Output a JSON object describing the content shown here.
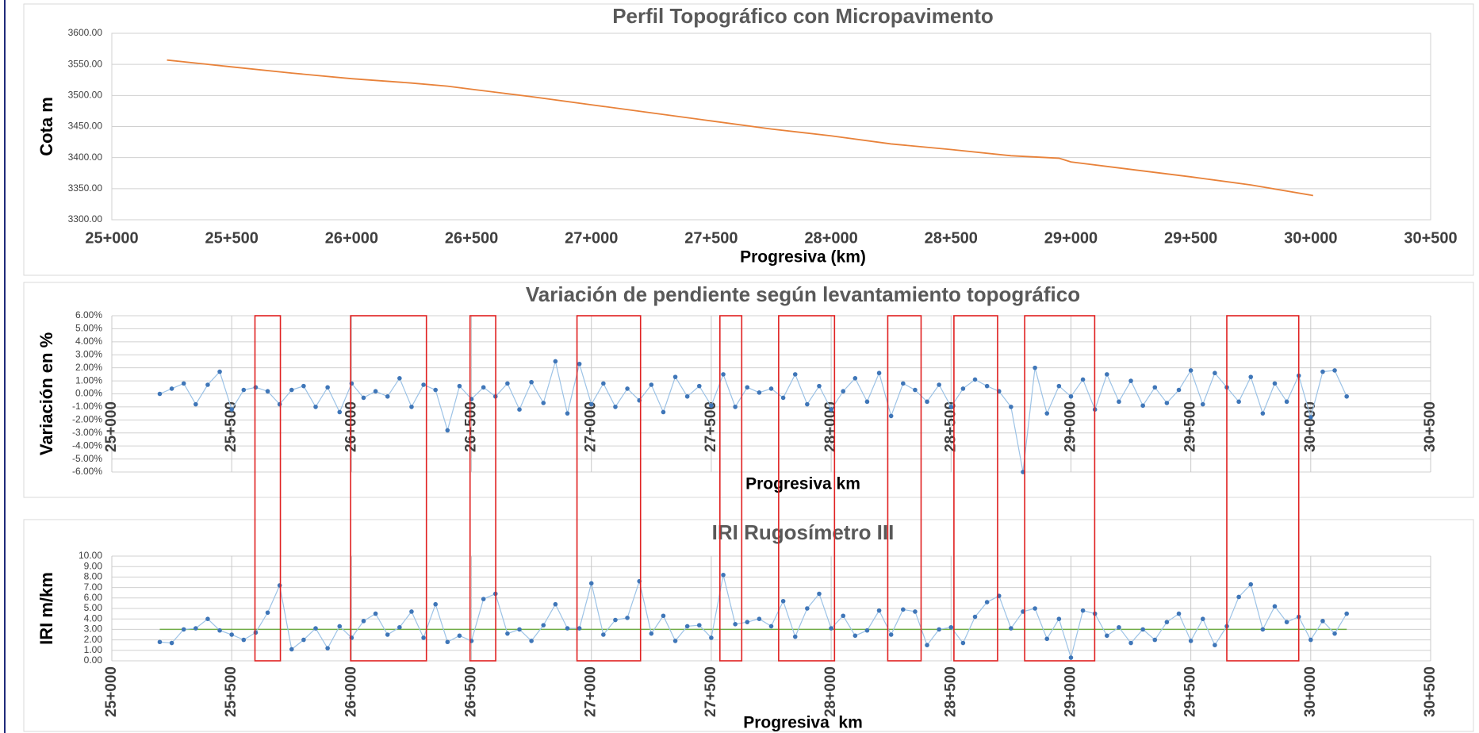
{
  "chart_data": [
    {
      "type": "line",
      "title": "Perfil Topográfico con Micropavimento",
      "xlabel": "Progresiva (km)",
      "ylabel": "Cota m",
      "color": "#e8823a",
      "markers": false,
      "grid": true,
      "xgrid": false,
      "rotate_xticks": false,
      "x": [
        25230,
        25500,
        25750,
        26000,
        26250,
        26400,
        26500,
        26750,
        27000,
        27250,
        27500,
        27750,
        28000,
        28250,
        28500,
        28750,
        28950,
        29000,
        29250,
        29500,
        29750,
        30010
      ],
      "values": [
        3557,
        3546,
        3536,
        3527,
        3520,
        3515,
        3510,
        3498,
        3485,
        3472,
        3459,
        3446,
        3435,
        3422,
        3413,
        3403,
        3399,
        3393,
        3381,
        3369,
        3356,
        3339
      ],
      "xlim": [
        25000,
        30500
      ],
      "xticks": [
        {
          "value": 25000,
          "label": "25+000"
        },
        {
          "value": 25500,
          "label": "25+500"
        },
        {
          "value": 26000,
          "label": "26+000"
        },
        {
          "value": 26500,
          "label": "26+500"
        },
        {
          "value": 27000,
          "label": "27+000"
        },
        {
          "value": 27500,
          "label": "27+500"
        },
        {
          "value": 28000,
          "label": "28+000"
        },
        {
          "value": 28500,
          "label": "28+500"
        },
        {
          "value": 29000,
          "label": "29+000"
        },
        {
          "value": 29500,
          "label": "29+500"
        },
        {
          "value": 30000,
          "label": "30+000"
        },
        {
          "value": 30500,
          "label": "30+500"
        }
      ],
      "ylim": [
        3300,
        3600
      ],
      "yticks": [
        {
          "value": 3300,
          "label": "3300.00"
        },
        {
          "value": 3350,
          "label": "3350.00"
        },
        {
          "value": 3400,
          "label": "3400.00"
        },
        {
          "value": 3450,
          "label": "3450.00"
        },
        {
          "value": 3500,
          "label": "3500.00"
        },
        {
          "value": 3550,
          "label": "3550.00"
        },
        {
          "value": 3600,
          "label": "3600.00"
        }
      ]
    },
    {
      "type": "line",
      "title": "Variación de pendiente según levantamiento topográfico",
      "xlabel": "Progresiva km",
      "ylabel": "Variación en %",
      "color": "#3f76b8",
      "line_color": "#9dc3e6",
      "markers": true,
      "grid": true,
      "xgrid": true,
      "rotate_xticks": true,
      "x": [
        25200,
        25250,
        25300,
        25350,
        25400,
        25450,
        25500,
        25550,
        25600,
        25650,
        25700,
        25750,
        25800,
        25850,
        25900,
        25950,
        26000,
        26050,
        26100,
        26150,
        26200,
        26250,
        26300,
        26350,
        26400,
        26450,
        26500,
        26550,
        26600,
        26650,
        26700,
        26750,
        26800,
        26850,
        26900,
        26950,
        27000,
        27050,
        27100,
        27150,
        27200,
        27250,
        27300,
        27350,
        27400,
        27450,
        27500,
        27550,
        27600,
        27650,
        27700,
        27750,
        27800,
        27850,
        27900,
        27950,
        28000,
        28050,
        28100,
        28150,
        28200,
        28250,
        28300,
        28350,
        28400,
        28450,
        28500,
        28550,
        28600,
        28650,
        28700,
        28750,
        28800,
        28850,
        28900,
        28950,
        29000,
        29050,
        29100,
        29150,
        29200,
        29250,
        29300,
        29350,
        29400,
        29450,
        29500,
        29550,
        29600,
        29650,
        29700,
        29750,
        29800,
        29850,
        29900,
        29950,
        30000,
        30050,
        30100,
        30150
      ],
      "values": [
        0.0,
        0.4,
        0.8,
        -0.8,
        0.7,
        1.7,
        -1.2,
        0.3,
        0.5,
        0.2,
        -0.8,
        0.3,
        0.6,
        -1.0,
        0.5,
        -1.4,
        0.8,
        -0.3,
        0.2,
        -0.2,
        1.2,
        -1.0,
        0.7,
        0.3,
        -2.8,
        0.6,
        -0.4,
        0.5,
        -0.2,
        0.8,
        -1.2,
        0.9,
        -0.7,
        2.5,
        -1.5,
        2.3,
        -0.8,
        0.8,
        -1.0,
        0.4,
        -0.5,
        0.7,
        -1.4,
        1.3,
        -0.2,
        0.6,
        -0.9,
        1.5,
        -1.0,
        0.5,
        0.1,
        0.4,
        -0.3,
        1.5,
        -0.8,
        0.6,
        -1.2,
        0.2,
        1.2,
        -0.6,
        1.6,
        -1.7,
        0.8,
        0.3,
        -0.6,
        0.7,
        -1.0,
        0.4,
        1.1,
        0.6,
        0.2,
        -1.0,
        -6.0,
        2.0,
        -1.5,
        0.6,
        -0.2,
        1.1,
        -1.2,
        1.5,
        -0.6,
        1.0,
        -0.9,
        0.5,
        -0.7,
        0.3,
        1.8,
        -0.8,
        1.6,
        0.5,
        -0.6,
        1.3,
        -1.5,
        0.8,
        -0.6,
        1.4,
        -1.8,
        1.7,
        1.8,
        -0.2
      ],
      "xlim": [
        25000,
        30500
      ],
      "xticks": [
        {
          "value": 25000,
          "label": "25+000"
        },
        {
          "value": 25500,
          "label": "25+500"
        },
        {
          "value": 26000,
          "label": "26+000"
        },
        {
          "value": 26500,
          "label": "26+500"
        },
        {
          "value": 27000,
          "label": "27+000"
        },
        {
          "value": 27500,
          "label": "27+500"
        },
        {
          "value": 28000,
          "label": "28+000"
        },
        {
          "value": 28500,
          "label": "28+500"
        },
        {
          "value": 29000,
          "label": "29+000"
        },
        {
          "value": 29500,
          "label": "29+500"
        },
        {
          "value": 30000,
          "label": "30+000"
        },
        {
          "value": 30500,
          "label": "30+500"
        }
      ],
      "ylim": [
        -6,
        6
      ],
      "yticks": [
        {
          "value": -6,
          "label": "-6.00%"
        },
        {
          "value": -5,
          "label": "-5.00%"
        },
        {
          "value": -4,
          "label": "-4.00%"
        },
        {
          "value": -3,
          "label": "-3.00%"
        },
        {
          "value": -2,
          "label": "-2.00%"
        },
        {
          "value": -1,
          "label": "-1.00%"
        },
        {
          "value": 0,
          "label": "0.00%"
        },
        {
          "value": 1,
          "label": "1.00%"
        },
        {
          "value": 2,
          "label": "2.00%"
        },
        {
          "value": 3,
          "label": "3.00%"
        },
        {
          "value": 4,
          "label": "4.00%"
        },
        {
          "value": 5,
          "label": "5.00%"
        },
        {
          "value": 6,
          "label": "6.00%"
        }
      ]
    },
    {
      "type": "line",
      "title": "IRI Rugosímetro III",
      "xlabel": "Progresiva  km",
      "ylabel": "IRI m/km",
      "color": "#3f76b8",
      "line_color": "#9dc3e6",
      "markers": true,
      "grid": true,
      "xgrid": true,
      "rotate_xticks": true,
      "reference_line": {
        "value": 3,
        "color": "#70ad47"
      },
      "x": [
        25200,
        25250,
        25300,
        25350,
        25400,
        25450,
        25500,
        25550,
        25600,
        25650,
        25700,
        25750,
        25800,
        25850,
        25900,
        25950,
        26000,
        26050,
        26100,
        26150,
        26200,
        26250,
        26300,
        26350,
        26400,
        26450,
        26500,
        26550,
        26600,
        26650,
        26700,
        26750,
        26800,
        26850,
        26900,
        26950,
        27000,
        27050,
        27100,
        27150,
        27200,
        27250,
        27300,
        27350,
        27400,
        27450,
        27500,
        27550,
        27600,
        27650,
        27700,
        27750,
        27800,
        27850,
        27900,
        27950,
        28000,
        28050,
        28100,
        28150,
        28200,
        28250,
        28300,
        28350,
        28400,
        28450,
        28500,
        28550,
        28600,
        28650,
        28700,
        28750,
        28800,
        28850,
        28900,
        28950,
        29000,
        29050,
        29100,
        29150,
        29200,
        29250,
        29300,
        29350,
        29400,
        29450,
        29500,
        29550,
        29600,
        29650,
        29700,
        29750,
        29800,
        29850,
        29900,
        29950,
        30000,
        30050,
        30100,
        30150
      ],
      "values": [
        1.8,
        1.7,
        3.0,
        3.1,
        4.0,
        2.9,
        2.5,
        2.0,
        2.7,
        4.6,
        7.2,
        1.1,
        2.0,
        3.1,
        1.2,
        3.3,
        2.2,
        3.8,
        4.5,
        2.5,
        3.2,
        4.7,
        2.2,
        5.4,
        1.8,
        2.4,
        1.9,
        5.9,
        6.4,
        2.6,
        3.0,
        1.9,
        3.4,
        5.4,
        3.1,
        3.1,
        7.4,
        2.5,
        3.9,
        4.1,
        7.6,
        2.6,
        4.3,
        1.9,
        3.3,
        3.4,
        2.2,
        8.2,
        3.5,
        3.7,
        4.0,
        3.3,
        5.7,
        2.3,
        5.0,
        6.4,
        3.1,
        4.3,
        2.4,
        2.9,
        4.8,
        2.5,
        4.9,
        4.7,
        1.5,
        3.0,
        3.2,
        1.7,
        4.2,
        5.6,
        6.2,
        3.1,
        4.7,
        5.0,
        2.1,
        4.0,
        0.3,
        4.8,
        4.5,
        2.4,
        3.2,
        1.7,
        3.0,
        2.0,
        3.7,
        4.5,
        1.9,
        4.0,
        1.5,
        3.3,
        6.1,
        7.3,
        3.0,
        5.2,
        3.7,
        4.2,
        2.0,
        3.8,
        2.6,
        4.5
      ],
      "xlim": [
        25000,
        30500
      ],
      "xticks": [
        {
          "value": 25000,
          "label": "25+000"
        },
        {
          "value": 25500,
          "label": "25+500"
        },
        {
          "value": 26000,
          "label": "26+000"
        },
        {
          "value": 26500,
          "label": "26+500"
        },
        {
          "value": 27000,
          "label": "27+000"
        },
        {
          "value": 27500,
          "label": "27+500"
        },
        {
          "value": 28000,
          "label": "28+000"
        },
        {
          "value": 28500,
          "label": "28+500"
        },
        {
          "value": 29000,
          "label": "29+000"
        },
        {
          "value": 29500,
          "label": "29+500"
        },
        {
          "value": 30000,
          "label": "30+000"
        },
        {
          "value": 30500,
          "label": "30+500"
        }
      ],
      "ylim": [
        0,
        10
      ],
      "yticks": [
        {
          "value": 0,
          "label": "0.00"
        },
        {
          "value": 1,
          "label": "1.00"
        },
        {
          "value": 2,
          "label": "2.00"
        },
        {
          "value": 3,
          "label": "3.00"
        },
        {
          "value": 4,
          "label": "4.00"
        },
        {
          "value": 5,
          "label": "5.00"
        },
        {
          "value": 6,
          "label": "6.00"
        },
        {
          "value": 7,
          "label": "7.00"
        },
        {
          "value": 8,
          "label": "8.00"
        },
        {
          "value": 9,
          "label": "9.00"
        },
        {
          "value": 10,
          "label": "10.00"
        }
      ]
    }
  ],
  "highlight_ranges": [
    [
      25597,
      25703
    ],
    [
      25996,
      26312
    ],
    [
      26494,
      26601
    ],
    [
      26940,
      27205
    ],
    [
      27536,
      27627
    ],
    [
      27781,
      28014
    ],
    [
      28236,
      28375
    ],
    [
      28512,
      28694
    ],
    [
      28807,
      29099
    ],
    [
      29650,
      29950
    ]
  ],
  "highlight_color": "#e02020"
}
